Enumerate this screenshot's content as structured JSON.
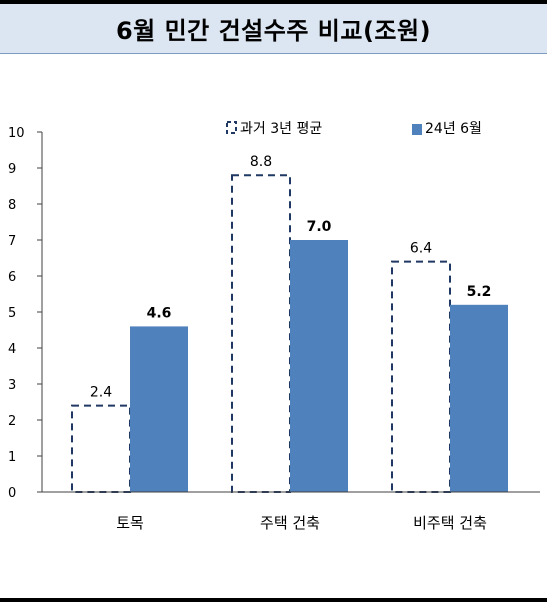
{
  "title": "6월 민간 건설수주 비교(조원)",
  "colors": {
    "title_bg": "#dce6f2",
    "bar_current": "#4f81bd",
    "bar_avg_border": "#1f3864",
    "axis": "#404040"
  },
  "chart_data": {
    "type": "bar",
    "title": "6월 민간 건설수주 비교(조원)",
    "categories": [
      "토목",
      "주택 건축",
      "비주택 건축"
    ],
    "series": [
      {
        "name": "과거 3년 평균",
        "values": [
          2.4,
          8.8,
          6.4
        ],
        "style": "dashed-outline",
        "labels": [
          "2.4",
          "8.8",
          "6.4"
        ]
      },
      {
        "name": "24년 6월",
        "values": [
          4.6,
          7.0,
          5.2
        ],
        "style": "solid",
        "labels": [
          "4.6",
          "7.0",
          "5.2"
        ]
      }
    ],
    "yticks": [
      "0",
      "1",
      "2",
      "3",
      "4",
      "5",
      "6",
      "7",
      "8",
      "9",
      "10"
    ],
    "ylim": [
      0,
      10
    ],
    "grid": false,
    "legend_position": "top-right"
  }
}
